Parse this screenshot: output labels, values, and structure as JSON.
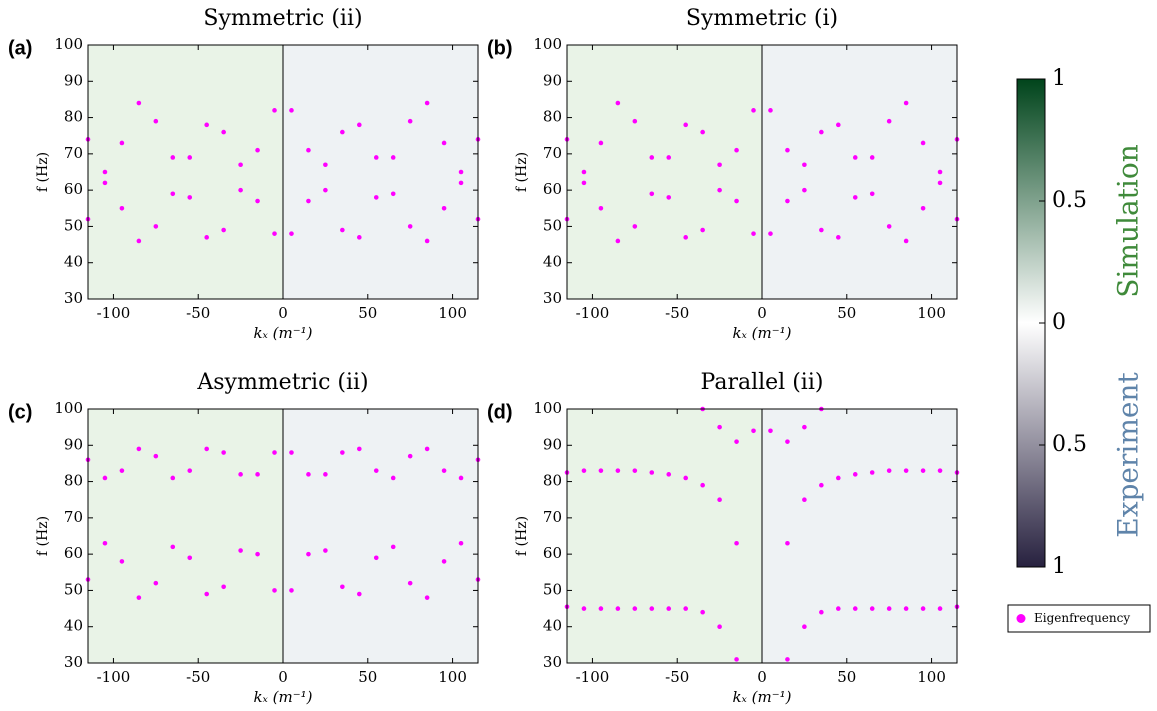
{
  "chart_data": [
    {
      "type": "scatter",
      "label": "(a)",
      "title": "Symmetric (ii)",
      "xlabel": "kₓ (m⁻¹)",
      "ylabel": "f (Hz)",
      "x": [
        -115,
        -105,
        -95,
        -85,
        -75,
        -65,
        -55,
        -45,
        -35,
        -25,
        -15,
        -5,
        5,
        15,
        25,
        35,
        45,
        55,
        65,
        75,
        85,
        95,
        105,
        115
      ],
      "xlim": [
        -115,
        115
      ],
      "ylim": [
        30,
        100
      ],
      "xticks": [
        -100,
        -50,
        0,
        50,
        100
      ],
      "yticks": [
        30,
        40,
        50,
        60,
        70,
        80,
        90,
        100
      ],
      "series": [
        {
          "name": "Eigenfrequency",
          "color": "#ff00ff",
          "values": [
            52,
            62,
            73,
            84,
            79,
            69,
            58,
            47,
            49,
            60,
            71,
            82,
            82,
            71,
            60,
            49,
            47,
            58,
            69,
            79,
            84,
            73,
            62,
            52
          ]
        },
        {
          "color": "#ff00ff",
          "values": [
            74,
            65,
            55,
            46,
            50,
            59,
            69,
            78,
            76,
            67,
            57,
            48,
            48,
            57,
            67,
            76,
            78,
            69,
            59,
            50,
            46,
            55,
            65,
            74
          ]
        }
      ]
    },
    {
      "type": "scatter",
      "label": "(b)",
      "title": "Symmetric (i)",
      "xlabel": "kₓ (m⁻¹)",
      "ylabel": "f (Hz)",
      "x": [
        -115,
        -105,
        -95,
        -85,
        -75,
        -65,
        -55,
        -45,
        -35,
        -25,
        -15,
        -5,
        5,
        15,
        25,
        35,
        45,
        55,
        65,
        75,
        85,
        95,
        105,
        115
      ],
      "xlim": [
        -115,
        115
      ],
      "ylim": [
        30,
        100
      ],
      "xticks": [
        -100,
        -50,
        0,
        50,
        100
      ],
      "yticks": [
        30,
        40,
        50,
        60,
        70,
        80,
        90,
        100
      ],
      "series": [
        {
          "color": "#ff00ff",
          "values": [
            52,
            62,
            73,
            84,
            79,
            69,
            58,
            47,
            49,
            60,
            71,
            82,
            82,
            71,
            60,
            49,
            47,
            58,
            69,
            79,
            84,
            73,
            62,
            52
          ]
        },
        {
          "color": "#ff00ff",
          "values": [
            74,
            65,
            55,
            46,
            50,
            59,
            69,
            78,
            76,
            67,
            57,
            48,
            48,
            57,
            67,
            76,
            78,
            69,
            59,
            50,
            46,
            55,
            65,
            74
          ]
        }
      ]
    },
    {
      "type": "scatter",
      "label": "(c)",
      "title": "Asymmetric (ii)",
      "xlabel": "kₓ (m⁻¹)",
      "ylabel": "f (Hz)",
      "x": [
        -115,
        -105,
        -95,
        -85,
        -75,
        -65,
        -55,
        -45,
        -35,
        -25,
        -15,
        -5,
        5,
        15,
        25,
        35,
        45,
        55,
        65,
        75,
        85,
        95,
        105,
        115
      ],
      "xlim": [
        -115,
        115
      ],
      "ylim": [
        30,
        100
      ],
      "xticks": [
        -100,
        -50,
        0,
        50,
        100
      ],
      "yticks": [
        30,
        40,
        50,
        60,
        70,
        80,
        90,
        100
      ],
      "series": [
        {
          "color": "#ff00ff",
          "values": [
            86,
            81,
            83,
            89,
            87,
            81,
            83,
            89,
            88,
            82,
            82,
            88,
            88,
            82,
            82,
            88,
            89,
            83,
            81,
            87,
            89,
            83,
            81,
            86
          ]
        },
        {
          "color": "#ff00ff",
          "values": [
            53,
            63,
            58,
            48,
            52,
            62,
            59,
            49,
            51,
            61,
            60,
            50,
            50,
            60,
            61,
            51,
            49,
            59,
            62,
            52,
            48,
            58,
            63,
            53
          ]
        }
      ]
    },
    {
      "type": "scatter",
      "label": "(d)",
      "title": "Parallel (ii)",
      "xlabel": "kₓ (m⁻¹)",
      "ylabel": "f (Hz)",
      "x": [
        -115,
        -105,
        -95,
        -85,
        -75,
        -65,
        -55,
        -45,
        -35,
        -25,
        -15,
        -5,
        5,
        15,
        25,
        35,
        45,
        55,
        65,
        75,
        85,
        95,
        105,
        115
      ],
      "xlim": [
        -115,
        115
      ],
      "ylim": [
        30,
        100
      ],
      "xticks": [
        -100,
        -50,
        0,
        50,
        100
      ],
      "yticks": [
        30,
        40,
        50,
        60,
        70,
        80,
        90,
        100
      ],
      "series": [
        {
          "color": "#ff00ff",
          "values": [
            82.5,
            83,
            83,
            83,
            83,
            82.5,
            82,
            81,
            79,
            75,
            63,
            null,
            null,
            63,
            75,
            79,
            81,
            82,
            82.5,
            83,
            83,
            83,
            83,
            82.5
          ]
        },
        {
          "color": "#ff00ff",
          "values": [
            45.5,
            45,
            45,
            45,
            45,
            45,
            45,
            45,
            44,
            40,
            31,
            null,
            null,
            31,
            40,
            44,
            45,
            45,
            45,
            45,
            45,
            45,
            45,
            45.5
          ]
        },
        {
          "color": "#ff00ff",
          "values": [
            null,
            null,
            null,
            null,
            null,
            null,
            null,
            null,
            100,
            95,
            91,
            94,
            94,
            91,
            95,
            100,
            null,
            null,
            null,
            null,
            null,
            null,
            null,
            null
          ]
        }
      ]
    },
    {
      "type": "colorbar",
      "ylim": [
        -1,
        1
      ],
      "yticks": [
        {
          "value": 1,
          "label": "1"
        },
        {
          "value": 0.5,
          "label": "0.5"
        },
        {
          "value": 0,
          "label": "0"
        },
        {
          "value": -0.5,
          "label": "0.5"
        },
        {
          "value": -1,
          "label": "1"
        }
      ],
      "labels": [
        "Simulation",
        "Experiment"
      ],
      "label_colors": [
        "#3f8a3a",
        "#5f84aa"
      ],
      "colors": [
        "#00441b",
        "#ffffff",
        "#27213f"
      ]
    }
  ]
}
